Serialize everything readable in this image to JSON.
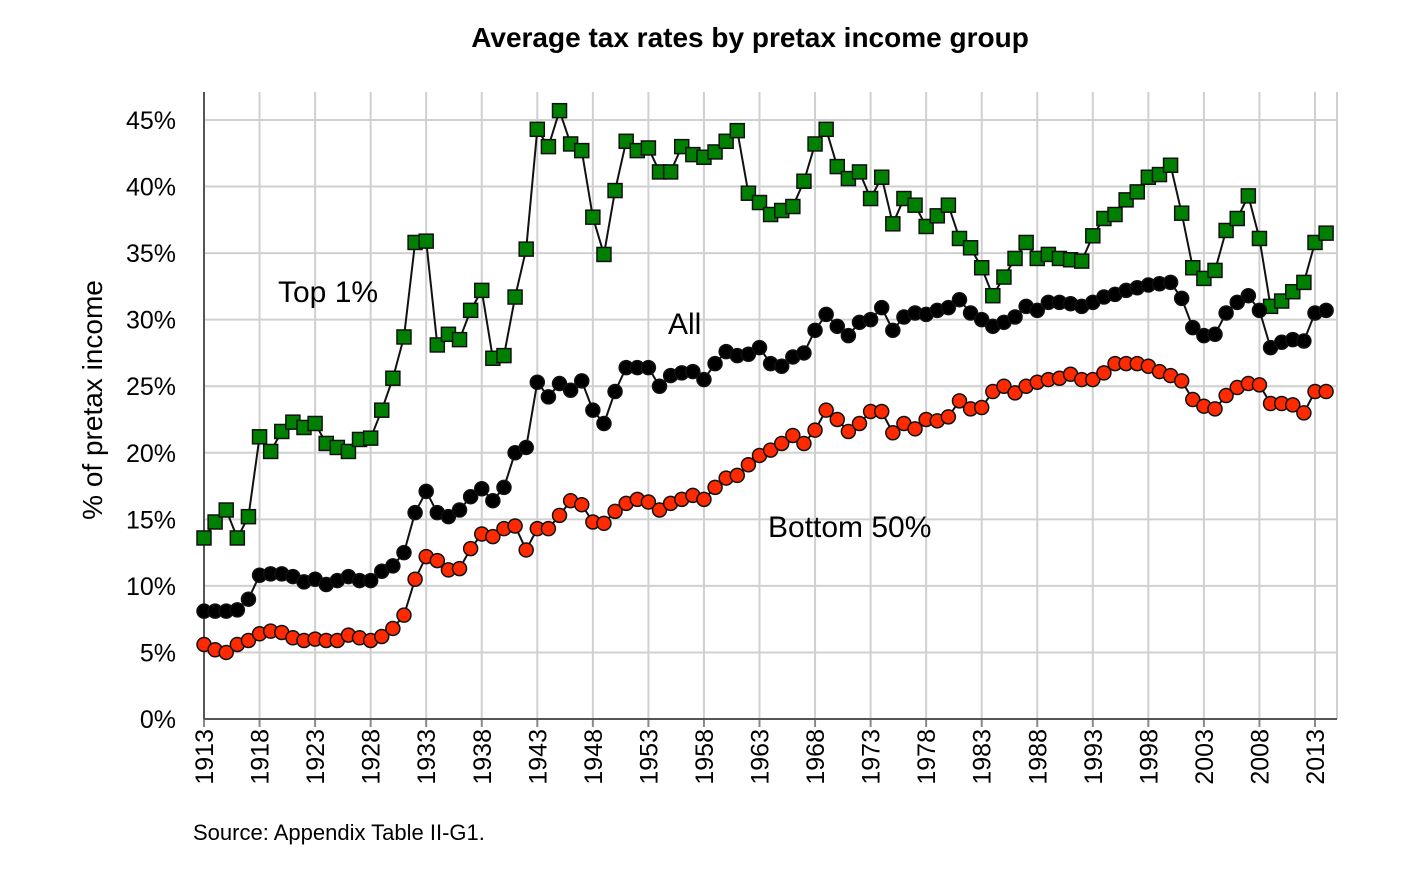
{
  "chart_data": {
    "type": "line",
    "title": "Average tax rates by pretax income group",
    "xlabel": "",
    "ylabel": "% of pretax income",
    "source": "Source: Appendix Table II-G1.",
    "xlim": [
      1913,
      2014
    ],
    "ylim": [
      0,
      45
    ],
    "x_ticks": [
      1913,
      1918,
      1923,
      1928,
      1933,
      1938,
      1943,
      1948,
      1953,
      1958,
      1963,
      1968,
      1973,
      1978,
      1983,
      1988,
      1993,
      1998,
      2003,
      2008,
      2013
    ],
    "y_ticks": [
      0,
      5,
      10,
      15,
      20,
      25,
      30,
      35,
      40,
      45
    ],
    "y_tick_labels": [
      "0%",
      "5%",
      "10%",
      "15%",
      "20%",
      "25%",
      "30%",
      "35%",
      "40%",
      "45%"
    ],
    "grid": true,
    "x_start": 1913,
    "series": [
      {
        "name": "Top 1%",
        "label": "Top 1%",
        "color": "#008000",
        "marker": "square",
        "values": [
          13.6,
          14.8,
          15.7,
          13.6,
          15.2,
          21.2,
          20.1,
          21.6,
          22.3,
          21.9,
          22.2,
          20.7,
          20.4,
          20.1,
          21.0,
          21.1,
          23.2,
          25.6,
          28.7,
          35.8,
          35.9,
          28.1,
          28.9,
          28.5,
          30.7,
          32.2,
          27.1,
          27.3,
          31.7,
          35.3,
          44.3,
          43.0,
          45.7,
          43.2,
          42.7,
          37.7,
          34.9,
          39.7,
          43.4,
          42.7,
          42.9,
          41.1,
          41.1,
          43.0,
          42.4,
          42.2,
          42.6,
          43.4,
          44.2,
          39.5,
          38.8,
          37.9,
          38.2,
          38.5,
          40.4,
          43.2,
          44.3,
          41.5,
          40.6,
          41.1,
          39.1,
          40.7,
          37.2,
          39.1,
          38.6,
          37.0,
          37.8,
          38.6,
          36.1,
          35.4,
          33.9,
          31.8,
          33.2,
          34.6,
          35.8,
          34.6,
          34.9,
          34.6,
          34.5,
          34.4,
          36.3,
          37.6,
          37.9,
          39.0,
          39.6,
          40.7,
          40.9,
          41.6,
          38.0,
          33.9,
          33.1,
          33.7,
          36.7,
          37.6,
          39.3,
          36.1,
          31.0,
          31.4,
          32.1,
          32.8,
          35.8,
          36.5
        ]
      },
      {
        "name": "All",
        "label": "All",
        "color": "#000000",
        "marker": "circle",
        "values": [
          8.1,
          8.1,
          8.1,
          8.2,
          9.0,
          10.8,
          10.9,
          10.9,
          10.7,
          10.3,
          10.5,
          10.1,
          10.4,
          10.7,
          10.4,
          10.4,
          11.1,
          11.5,
          12.5,
          15.5,
          17.1,
          15.5,
          15.2,
          15.7,
          16.7,
          17.3,
          16.4,
          17.4,
          20.0,
          20.4,
          25.3,
          24.2,
          25.2,
          24.7,
          25.4,
          23.2,
          22.2,
          24.6,
          26.4,
          26.4,
          26.4,
          25.0,
          25.8,
          26.0,
          26.1,
          25.5,
          26.7,
          27.6,
          27.3,
          27.4,
          27.9,
          26.7,
          26.5,
          27.2,
          27.5,
          29.2,
          30.4,
          29.5,
          28.8,
          29.8,
          30.0,
          30.9,
          29.2,
          30.2,
          30.5,
          30.4,
          30.7,
          30.9,
          31.5,
          30.5,
          30.0,
          29.5,
          29.8,
          30.2,
          31.0,
          30.7,
          31.3,
          31.3,
          31.2,
          31.0,
          31.3,
          31.7,
          31.9,
          32.2,
          32.4,
          32.6,
          32.7,
          32.8,
          31.6,
          29.4,
          28.8,
          28.9,
          30.5,
          31.3,
          31.8,
          30.7,
          27.9,
          28.3,
          28.5,
          28.4,
          30.5,
          30.7
        ]
      },
      {
        "name": "Bottom 50%",
        "label": "Bottom 50%",
        "color": "#ff2a00",
        "marker": "circle",
        "values": [
          5.6,
          5.2,
          5.0,
          5.6,
          5.9,
          6.4,
          6.6,
          6.5,
          6.1,
          5.9,
          6.0,
          5.9,
          5.9,
          6.3,
          6.1,
          5.9,
          6.2,
          6.8,
          7.8,
          10.5,
          12.2,
          11.9,
          11.2,
          11.3,
          12.8,
          13.9,
          13.7,
          14.3,
          14.5,
          12.7,
          14.3,
          14.3,
          15.3,
          16.4,
          16.1,
          14.8,
          14.7,
          15.6,
          16.2,
          16.5,
          16.3,
          15.7,
          16.2,
          16.5,
          16.8,
          16.5,
          17.4,
          18.1,
          18.3,
          19.1,
          19.8,
          20.2,
          20.7,
          21.3,
          20.7,
          21.7,
          23.2,
          22.5,
          21.6,
          22.2,
          23.1,
          23.1,
          21.5,
          22.2,
          21.8,
          22.5,
          22.4,
          22.7,
          23.9,
          23.3,
          23.4,
          24.6,
          25.0,
          24.5,
          25.0,
          25.3,
          25.5,
          25.6,
          25.9,
          25.5,
          25.5,
          26.0,
          26.7,
          26.7,
          26.7,
          26.5,
          26.1,
          25.8,
          25.4,
          24.0,
          23.5,
          23.3,
          24.3,
          24.9,
          25.2,
          25.1,
          23.7,
          23.7,
          23.6,
          23.0,
          24.6,
          24.6
        ]
      }
    ]
  }
}
